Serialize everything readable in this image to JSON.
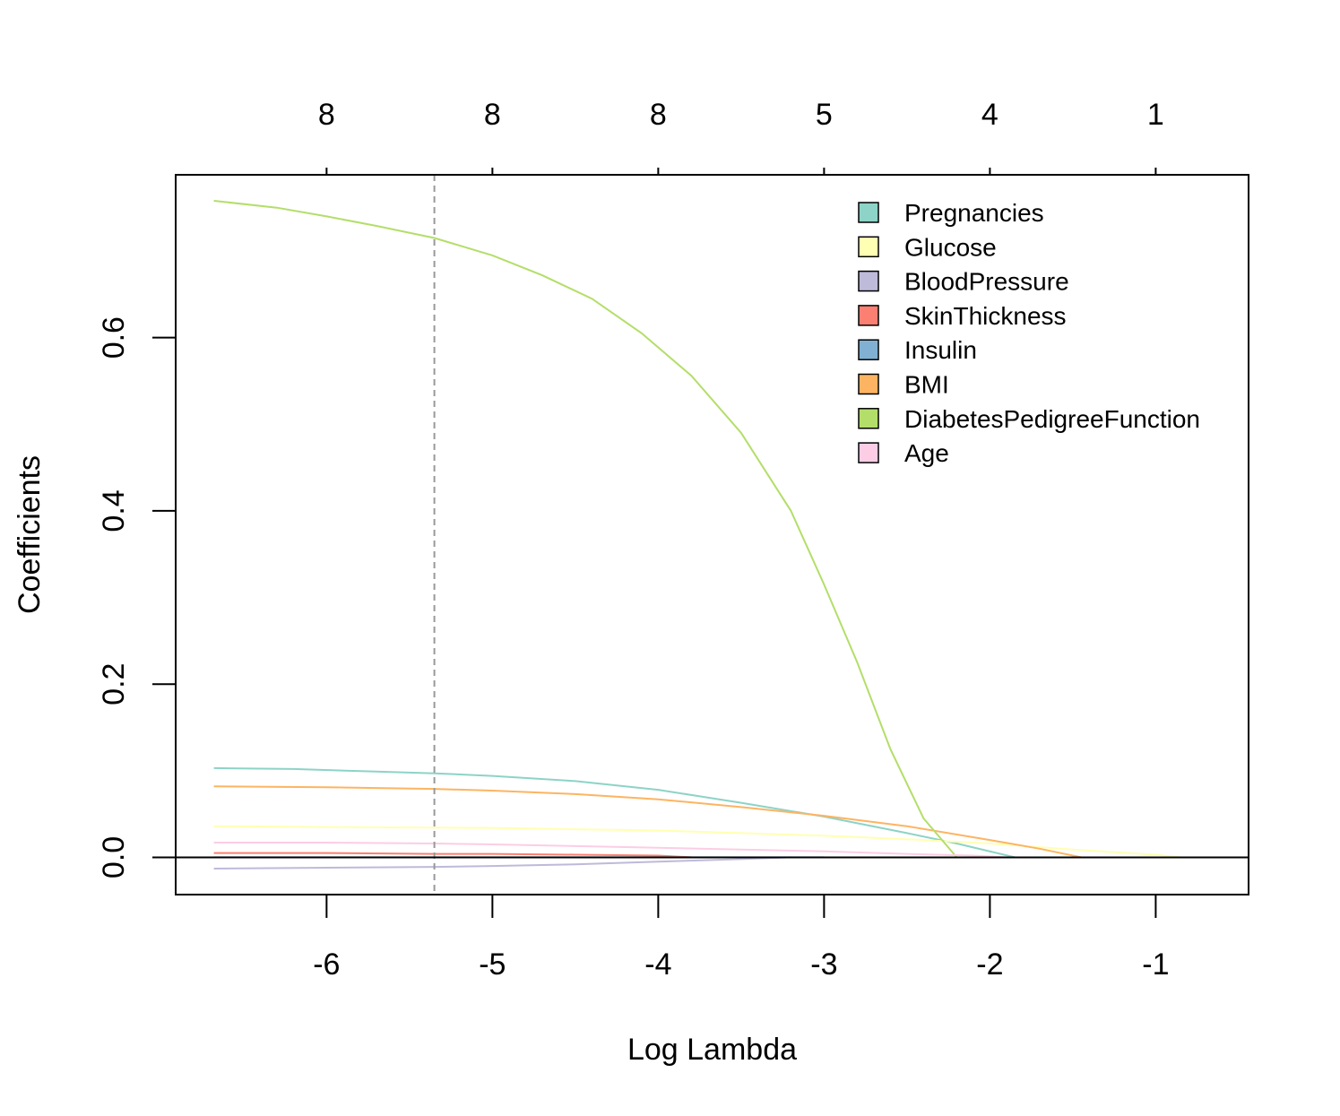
{
  "chart_data": {
    "type": "line",
    "title": "",
    "xlabel": "Log Lambda",
    "ylabel": "Coefficients",
    "xlim": [
      -6.91,
      -0.44
    ],
    "ylim": [
      -0.043,
      0.788
    ],
    "x_ticks": [
      -6,
      -5,
      -4,
      -3,
      -2,
      -1
    ],
    "x_tick_labels": [
      "-6",
      "-5",
      "-4",
      "-3",
      "-2",
      "-1"
    ],
    "y_ticks": [
      0.0,
      0.2,
      0.4,
      0.6
    ],
    "y_tick_labels": [
      "0.0",
      "0.2",
      "0.4",
      "0.6"
    ],
    "top_ticks": [
      -6,
      -5,
      -4,
      -3,
      -2,
      -1
    ],
    "top_tick_labels": [
      "8",
      "8",
      "8",
      "5",
      "4",
      "1"
    ],
    "reference_lines": [
      {
        "axis": "x",
        "value": -5.35,
        "style": "dashed",
        "color": "#999999"
      },
      {
        "axis": "y",
        "value": 0.0,
        "style": "solid",
        "color": "#000000"
      }
    ],
    "legend_position": "top-right",
    "grid": false,
    "series": [
      {
        "name": "Pregnancies",
        "color": "#8DD3C7",
        "points": [
          [
            -6.68,
            0.103
          ],
          [
            -6.2,
            0.102
          ],
          [
            -5.7,
            0.099
          ],
          [
            -5.35,
            0.097
          ],
          [
            -5.0,
            0.094
          ],
          [
            -4.5,
            0.088
          ],
          [
            -4.0,
            0.078
          ],
          [
            -3.5,
            0.063
          ],
          [
            -3.0,
            0.047
          ],
          [
            -2.5,
            0.028
          ],
          [
            -2.2,
            0.016
          ],
          [
            -1.85,
            0.0
          ]
        ]
      },
      {
        "name": "Glucose",
        "color": "#FFFFB3",
        "points": [
          [
            -6.68,
            0.036
          ],
          [
            -6.0,
            0.035
          ],
          [
            -5.0,
            0.034
          ],
          [
            -4.0,
            0.031
          ],
          [
            -3.0,
            0.025
          ],
          [
            -2.5,
            0.021
          ],
          [
            -2.0,
            0.016
          ],
          [
            -1.5,
            0.009
          ],
          [
            -1.0,
            0.003
          ],
          [
            -0.85,
            0.0
          ]
        ]
      },
      {
        "name": "BloodPressure",
        "color": "#BEBADA",
        "points": [
          [
            -6.68,
            -0.013
          ],
          [
            -6.0,
            -0.012
          ],
          [
            -5.35,
            -0.011
          ],
          [
            -5.0,
            -0.01
          ],
          [
            -4.5,
            -0.008
          ],
          [
            -4.0,
            -0.005
          ],
          [
            -3.5,
            -0.002
          ],
          [
            -3.2,
            0.0
          ]
        ]
      },
      {
        "name": "SkinThickness",
        "color": "#FB8072",
        "points": [
          [
            -6.68,
            0.005
          ],
          [
            -6.0,
            0.005
          ],
          [
            -5.35,
            0.004
          ],
          [
            -5.0,
            0.004
          ],
          [
            -4.5,
            0.003
          ],
          [
            -4.0,
            0.002
          ],
          [
            -3.8,
            0.0
          ]
        ]
      },
      {
        "name": "Insulin",
        "color": "#80B1D3",
        "points": [
          [
            -6.68,
            0.0
          ],
          [
            -5.0,
            0.0
          ],
          [
            -3.0,
            0.0
          ]
        ]
      },
      {
        "name": "BMI",
        "color": "#FDB462",
        "points": [
          [
            -6.68,
            0.082
          ],
          [
            -6.0,
            0.081
          ],
          [
            -5.35,
            0.079
          ],
          [
            -5.0,
            0.077
          ],
          [
            -4.5,
            0.073
          ],
          [
            -4.0,
            0.067
          ],
          [
            -3.5,
            0.058
          ],
          [
            -3.0,
            0.048
          ],
          [
            -2.5,
            0.036
          ],
          [
            -2.0,
            0.02
          ],
          [
            -1.7,
            0.01
          ],
          [
            -1.45,
            0.0
          ]
        ]
      },
      {
        "name": "DiabetesPedigreeFunction",
        "color": "#B3DE69",
        "points": [
          [
            -6.68,
            0.758
          ],
          [
            -6.3,
            0.75
          ],
          [
            -6.0,
            0.74
          ],
          [
            -5.7,
            0.729
          ],
          [
            -5.35,
            0.715
          ],
          [
            -5.0,
            0.695
          ],
          [
            -4.7,
            0.672
          ],
          [
            -4.4,
            0.645
          ],
          [
            -4.1,
            0.605
          ],
          [
            -3.8,
            0.556
          ],
          [
            -3.5,
            0.49
          ],
          [
            -3.2,
            0.4
          ],
          [
            -3.0,
            0.315
          ],
          [
            -2.8,
            0.225
          ],
          [
            -2.6,
            0.125
          ],
          [
            -2.4,
            0.045
          ],
          [
            -2.2,
            0.0
          ]
        ]
      },
      {
        "name": "Age",
        "color": "#FCCDE5",
        "points": [
          [
            -6.68,
            0.017
          ],
          [
            -6.0,
            0.017
          ],
          [
            -5.35,
            0.016
          ],
          [
            -5.0,
            0.015
          ],
          [
            -4.5,
            0.013
          ],
          [
            -4.0,
            0.011
          ],
          [
            -3.5,
            0.009
          ],
          [
            -3.0,
            0.007
          ],
          [
            -2.5,
            0.004
          ],
          [
            -2.1,
            0.002
          ],
          [
            -1.9,
            0.0
          ]
        ]
      }
    ]
  }
}
